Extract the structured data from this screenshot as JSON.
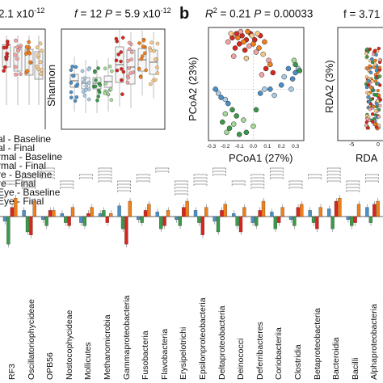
{
  "panels": {
    "a_left": {
      "stat_text": "2.1 x10",
      "stat_exp": "-12"
    },
    "a_right": {
      "stat_f": "f",
      "stat_eq": " = 12 ",
      "stat_p": "P",
      "stat_rest": " = 5.9 x10",
      "stat_exp": "-12",
      "ylabel": "Shannon"
    },
    "b": {
      "letter": "b",
      "r2_r": "R",
      "r2_sup": "2",
      "r2_rest": " = 0.21 ",
      "p_label": "P",
      "p_rest": " = 0.00033",
      "xlabel": "PCoA1 (27%)",
      "ylabel": "PCoA2 (23%)",
      "xticks": [
        "-0.3",
        "-0.2",
        "-0.1",
        "0.0",
        "0.1",
        "0.2",
        "0.3"
      ]
    },
    "rda": {
      "stat": "f = 3.71",
      "ylabel": "RDA2 (3%)",
      "xlabel": "RDA",
      "xticks": [
        "-5",
        "0"
      ]
    }
  },
  "legend": [
    "al - Baseline",
    "al - Final",
    "rmal - Baseline",
    "rmal - Final",
    "re - Baseline",
    "re - Final",
    "Eye - Baseline",
    "Eye - Final"
  ],
  "colors": {
    "blue": "#4a90c8",
    "lightblue": "#a8cce8",
    "green": "#3a9a4a",
    "lightgreen": "#a6d89a",
    "red": "#d7261e",
    "pink": "#f4a3a3",
    "orange": "#f07f1a",
    "lightorange": "#f9c98a",
    "gray": "#9a9a9a"
  },
  "chart_data": [
    {
      "type": "scatter",
      "title": "",
      "xlabel": "PCoA1 (27%)",
      "ylabel": "PCoA2 (23%)",
      "xlim": [
        -0.32,
        0.36
      ],
      "ylim": [
        -0.25,
        0.3
      ],
      "series": [
        {
          "color": "#d7261e",
          "points": [
            [
              -0.15,
              0.25
            ],
            [
              -0.12,
              0.27
            ],
            [
              -0.08,
              0.26
            ],
            [
              -0.05,
              0.24
            ],
            [
              -0.1,
              0.22
            ],
            [
              -0.02,
              0.27
            ],
            [
              0.01,
              0.24
            ],
            [
              -0.13,
              0.2
            ],
            [
              0.05,
              0.26
            ],
            [
              -0.06,
              0.19
            ],
            [
              0.09,
              0.1
            ],
            [
              0.14,
              0.08
            ]
          ]
        },
        {
          "color": "#f4a3a3",
          "points": [
            [
              -0.18,
              0.23
            ],
            [
              -0.09,
              0.28
            ],
            [
              -0.03,
              0.21
            ],
            [
              0.02,
              0.18
            ],
            [
              -0.14,
              0.16
            ],
            [
              0.11,
              0.14
            ],
            [
              0.06,
              0.07
            ]
          ]
        },
        {
          "color": "#f07f1a",
          "points": [
            [
              -0.04,
              0.28
            ],
            [
              0.0,
              0.22
            ],
            [
              -0.11,
              0.25
            ],
            [
              0.04,
              0.2
            ],
            [
              0.08,
              0.23
            ],
            [
              -0.07,
              0.23
            ],
            [
              0.12,
              0.12
            ]
          ]
        },
        {
          "color": "#f9c98a",
          "points": [
            [
              -0.16,
              0.27
            ],
            [
              -0.01,
              0.26
            ],
            [
              0.03,
              0.27
            ],
            [
              0.07,
              0.17
            ],
            [
              -0.05,
              0.15
            ]
          ]
        },
        {
          "color": "#4a90c8",
          "points": [
            [
              -0.27,
              0.0
            ],
            [
              -0.23,
              -0.04
            ],
            [
              -0.18,
              -0.07
            ],
            [
              0.05,
              -0.02
            ],
            [
              0.12,
              0.0
            ],
            [
              0.2,
              0.02
            ],
            [
              0.28,
              0.05
            ],
            [
              0.3,
              0.08
            ],
            [
              0.25,
              0.1
            ]
          ]
        },
        {
          "color": "#a8cce8",
          "points": [
            [
              -0.25,
              -0.02
            ],
            [
              -0.2,
              -0.05
            ],
            [
              0.08,
              0.0
            ],
            [
              0.15,
              -0.03
            ],
            [
              0.22,
              0.06
            ],
            [
              0.32,
              0.1
            ],
            [
              0.27,
              0.0
            ]
          ]
        },
        {
          "color": "#3a9a4a",
          "points": [
            [
              -0.22,
              -0.16
            ],
            [
              -0.17,
              -0.19
            ],
            [
              -0.12,
              -0.13
            ],
            [
              -0.05,
              -0.21
            ],
            [
              -0.1,
              -0.22
            ],
            [
              -0.15,
              -0.1
            ],
            [
              0.02,
              -0.1
            ],
            [
              0.3,
              0.12
            ],
            [
              0.33,
              0.09
            ]
          ]
        },
        {
          "color": "#a6d89a",
          "points": [
            [
              -0.2,
              -0.12
            ],
            [
              -0.14,
              -0.17
            ],
            [
              -0.07,
              -0.15
            ],
            [
              0.0,
              -0.18
            ],
            [
              -0.19,
              -0.21
            ],
            [
              0.29,
              0.14
            ]
          ]
        }
      ]
    },
    {
      "type": "bar",
      "title": "",
      "xlabel": "",
      "ylabel": "",
      "categories": [
        "RF3",
        "Oscillatoriophycideae",
        "OPB56",
        "Nostocophycideae",
        "Mollicutes",
        "Methanomicrobia",
        "Gammaproteobacteria",
        "Fusobacteria",
        "Flavobacteria",
        "Erysipelotrichi",
        "Epsilonproteobacteria",
        "Deltaproteobacteria",
        "Deinococci",
        "Deferribacteres",
        "Coriobacteriia",
        "Clostridia",
        "Betaproteobacteria",
        "Bacteroidia",
        "Bacilli",
        "Alphaproteobacteria"
      ],
      "series": [
        {
          "color": "#4a90c8",
          "values": [
            -0.15,
            0.2,
            -0.1,
            0.1,
            -0.2,
            0.1,
            0.35,
            -0.1,
            0.15,
            -0.1,
            0.2,
            -0.15,
            0.1,
            -0.2,
            0.15,
            -0.1,
            0.2,
            0.25,
            -0.1,
            0.3
          ]
        },
        {
          "color": "#3a9a4a",
          "values": [
            -0.9,
            -0.5,
            -0.3,
            -0.2,
            -0.3,
            0.2,
            -0.4,
            -0.2,
            -0.4,
            -0.3,
            -0.2,
            -0.5,
            -0.3,
            -0.3,
            -0.4,
            -0.3,
            -0.2,
            -0.4,
            -0.3,
            -0.2
          ]
        },
        {
          "color": "#d7261e",
          "values": [
            0.3,
            -0.6,
            0.2,
            -0.3,
            0.1,
            -0.2,
            -0.9,
            0.2,
            -0.3,
            0.3,
            -0.6,
            0.2,
            -0.5,
            0.2,
            -0.2,
            0.3,
            -0.4,
            0.5,
            -0.2,
            0.4
          ]
        },
        {
          "color": "#f07f1a",
          "values": [
            0.6,
            0.5,
            0.2,
            0.3,
            0.3,
            0.1,
            0.5,
            0.4,
            0.2,
            0.5,
            0.3,
            0.4,
            0.3,
            0.5,
            0.3,
            0.4,
            0.3,
            0.6,
            0.4,
            0.5
          ]
        }
      ]
    }
  ]
}
